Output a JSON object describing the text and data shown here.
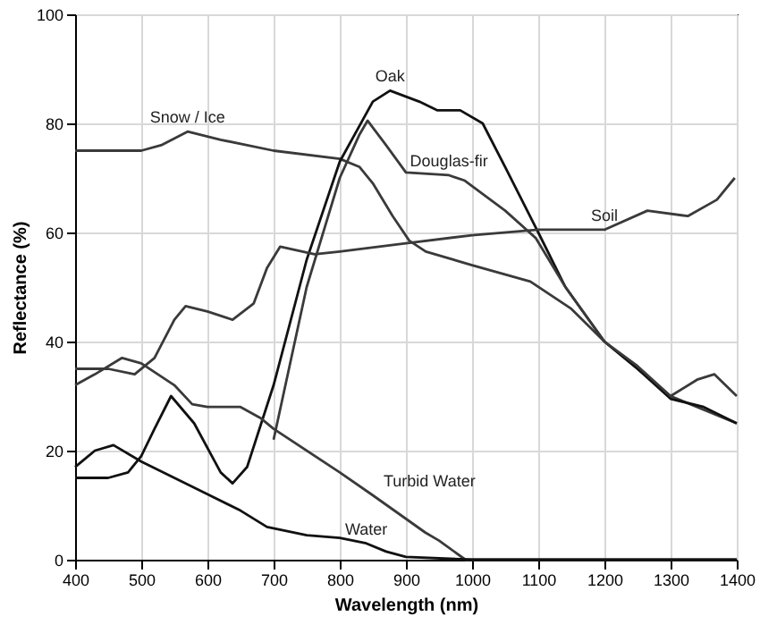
{
  "chart_data": {
    "type": "line",
    "xlabel": "Wavelength (nm)",
    "ylabel": "Reflectance (%)",
    "xlim": [
      400,
      1400
    ],
    "ylim": [
      0,
      100
    ],
    "xticks": [
      400,
      500,
      600,
      700,
      800,
      900,
      1000,
      1100,
      1200,
      1300,
      1400
    ],
    "yticks": [
      0,
      20,
      40,
      60,
      80,
      100
    ],
    "grid": true,
    "marker": "none",
    "line_style": "solid",
    "series": [
      {
        "color": "#3a3a3a",
        "x": [
          400,
          450,
          500,
          530,
          570,
          620,
          700,
          800,
          830,
          850,
          880,
          905,
          930,
          1000,
          1088,
          1150,
          1200,
          1250,
          1300,
          1400
        ],
        "values": [
          75,
          75,
          75,
          76,
          78.5,
          77,
          75,
          73.5,
          72,
          69,
          63,
          58.5,
          56.5,
          54,
          51,
          46,
          40,
          35,
          30,
          25
        ]
      },
      {
        "color": "#111111",
        "x": [
          400,
          450,
          480,
          500,
          520,
          545,
          580,
          620,
          638,
          660,
          700,
          750,
          800,
          850,
          876,
          920,
          947,
          982,
          1016,
          1050,
          1100,
          1141,
          1200,
          1250,
          1300,
          1350,
          1400
        ],
        "values": [
          15,
          15,
          16,
          19,
          24,
          30,
          25,
          16,
          14,
          17,
          32,
          55,
          73,
          84,
          86,
          84,
          82.4,
          82.4,
          80,
          72,
          60,
          50,
          40,
          35,
          29.5,
          28,
          25
        ]
      },
      {
        "color": "#3a3a3a",
        "x": [
          700,
          750,
          800,
          830,
          842,
          870,
          900,
          965,
          989,
          1050,
          1096,
          1141,
          1200,
          1250,
          1300,
          1340,
          1366,
          1400
        ],
        "values": [
          22,
          50,
          70,
          78,
          80.5,
          76,
          71,
          70.5,
          69.5,
          64,
          59,
          50,
          40,
          35.5,
          30,
          33,
          34,
          30
        ]
      },
      {
        "color": "#3a3a3a",
        "x": [
          400,
          450,
          490,
          520,
          550,
          567,
          600,
          638,
          670,
          690,
          710,
          762,
          800,
          900,
          1000,
          1100,
          1200,
          1265,
          1326,
          1370,
          1397
        ],
        "values": [
          35,
          35,
          34,
          37,
          44,
          46.5,
          45.5,
          44,
          47,
          53.5,
          57.4,
          56,
          56.5,
          58,
          59.5,
          60.5,
          60.5,
          64,
          63,
          66,
          70
        ]
      },
      {
        "color": "#3a3a3a",
        "x": [
          400,
          430,
          471,
          500,
          550,
          577,
          600,
          650,
          680,
          700,
          800,
          850,
          900,
          929,
          950,
          990,
          1400
        ],
        "values": [
          32,
          34,
          37,
          36,
          32,
          28.5,
          28,
          28,
          26,
          24,
          16,
          11.8,
          7.5,
          5,
          3.5,
          0,
          0
        ]
      },
      {
        "color": "#111111",
        "x": [
          400,
          430,
          458,
          500,
          550,
          600,
          650,
          690,
          750,
          800,
          840,
          870,
          900,
          1000,
          1400
        ],
        "values": [
          17,
          20,
          21,
          18,
          15,
          12,
          9,
          6,
          4.5,
          4,
          3,
          1.5,
          0.5,
          0,
          0
        ]
      }
    ],
    "annotations": [
      {
        "text": "Snow / Ice",
        "x": 570,
        "y": 78.5
      },
      {
        "text": "Oak",
        "x": 876,
        "y": 86
      },
      {
        "text": "Douglas-fir",
        "x": 965,
        "y": 70.5
      },
      {
        "text": "Soil",
        "x": 1200,
        "y": 60.5
      },
      {
        "text": "Turbid Water",
        "x": 850,
        "y": 11.8
      },
      {
        "text": "Water",
        "x": 840,
        "y": 3
      }
    ]
  }
}
